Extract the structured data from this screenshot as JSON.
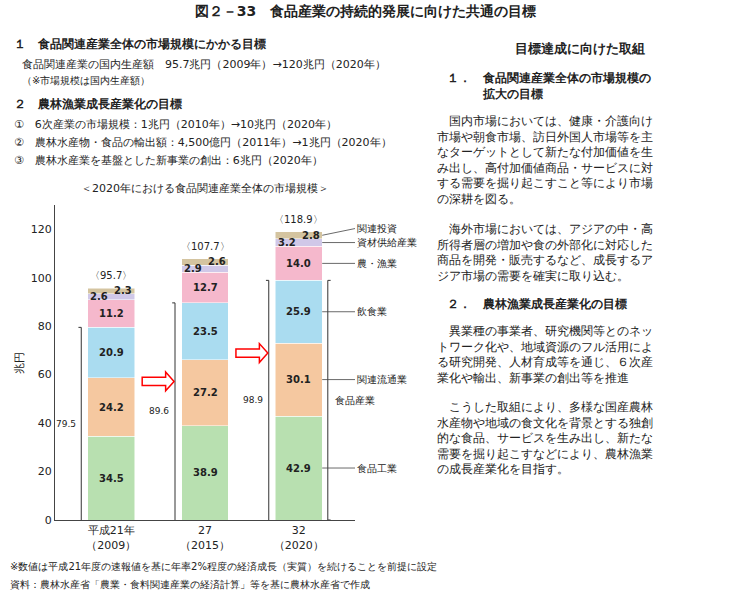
{
  "chart_data": {
    "type": "bar",
    "stacked": true,
    "data_labels": true,
    "grid": false,
    "title": "図２－33　食品産業の持続的発展に向けた共通の目標",
    "subtitle": "＜2020年における食品関連産業全体の市場規模＞",
    "ylabel": "兆円",
    "categories": [
      "平成21年\n（2009）",
      "27\n（2015）",
      "32\n（2020）"
    ],
    "series": [
      {
        "name": "食品工業",
        "color": "#b8e0b0",
        "values": [
          34.5,
          38.9,
          42.9
        ]
      },
      {
        "name": "関連流通業",
        "color": "#f5c8a0",
        "values": [
          24.2,
          27.2,
          30.1
        ]
      },
      {
        "name": "飲食業",
        "color": "#aadcf0",
        "values": [
          20.9,
          23.5,
          25.9
        ]
      },
      {
        "name": "農・漁業",
        "color": "#f5b8cc",
        "values": [
          11.2,
          12.7,
          14.0
        ],
        "value_labels": [
          "11.2",
          "12.7",
          "14.0"
        ]
      },
      {
        "name": "資材供給産業",
        "color": "#d0c8e8",
        "values": [
          2.6,
          2.9,
          3.2
        ]
      },
      {
        "name": "関連投資",
        "color": "#d4c4a0",
        "values": [
          2.3,
          2.6,
          2.8
        ]
      }
    ],
    "totals": [
      95.7,
      107.7,
      118.9
    ],
    "total_labels": [
      "〈95.7〉",
      "〈107.7〉",
      "〈118.9〉"
    ],
    "food_industry_totals": [
      79.5,
      89.6,
      98.9
    ],
    "food_industry_label": "食品産業",
    "ylim": [
      0,
      130
    ],
    "yticks": [
      0,
      20,
      40,
      60,
      80,
      100,
      120
    ],
    "annotations": [
      "１　食品関連産業全体の市場規模にかかる目標",
      "食品関連産業の国内生産額　95.7兆円（2009年）→120兆円（2020年）",
      "（※市場規模は国内生産額）",
      "２　農林漁業成長産業化の目標",
      "①　6次産業の市場規模：1兆円（2010年）→10兆円（2020年）",
      "②　農林水産物・食品の輸出額：4,500億円（2011年）→1兆円（2020年）",
      "③　農林水産業を基盤とした新事業の創出：6兆円（2020年）",
      "※数値は平成21年度の速報値を基に年率2%程度の経済成長（実質）を続けることを前提に設定",
      "資料：農林水産省「農業・食料関連産業の経済計算」等を基に農林水産省で作成",
      "目標達成に向けた取組",
      "１．　食品関連産業全体の市場規模の\n　　　拡大の目標",
      "　国内市場においては、健康・介護向け\n市場や朝食市場、訪日外国人市場等を主\nなターゲットとして新たな付加価値を生\nみ出し、高付加価値商品・サービスに対\nする需要を掘り起こすこと等により市場\nの深耕を図る。",
      "　海外市場においては、アジアの中・高\n所得者層の増加や食の外部化に対応した\n商品を開発・販売するなど、成長するア\nジア市場の需要を確実に取り込む。",
      "２．　農林漁業成長産業化の目標",
      "　異業種の事業者、研究機関等とのネッ\nトワーク化や、地域資源のフル活用によ\nる研究開発、人材育成等を通じ、６次産\n業化や輸出、新事業の創出等を推進",
      "　こうした取組により、多様な国産農林\n水産物や地域の食文化を背景とする独創\n的な食品、サービスを生み出し、新たな\n需要を掘り起こすなどにより、農林漁業\nの成長産業化を目指す。"
    ]
  }
}
